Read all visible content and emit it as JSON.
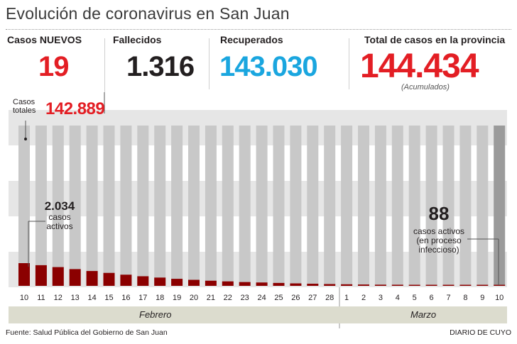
{
  "title": "Evolución de coronavirus en San Juan",
  "stats": {
    "new_label": "Casos NUEVOS",
    "new_value": "19",
    "deaths_label": "Fallecidos",
    "deaths_value": "1.316",
    "recovered_label": "Recuperados",
    "recovered_value": "143.030",
    "total_label": "Total de casos en la provincia",
    "total_value": "144.434",
    "total_note": "(Acumulados)"
  },
  "annotations": {
    "total_cases_label_1": "Casos",
    "total_cases_label_2": "totales",
    "total_cases_value": "142.889",
    "active_start_value": "2.034",
    "active_start_label_1": "casos",
    "active_start_label_2": "activos",
    "active_end_value": "88",
    "active_end_label_1": "casos activos",
    "active_end_label_2": "(en proceso",
    "active_end_label_3": "infeccioso)"
  },
  "months": {
    "feb": "Febrero",
    "mar": "Marzo"
  },
  "footer": {
    "source": "Fuente: Salud Pública del Gobierno de San Juan",
    "brand": "DIARIO DE CUYO"
  },
  "colors": {
    "red": "#e31e24",
    "blue": "#1aa6df",
    "dark": "#231f20",
    "bar_gray": "#c8c8c8",
    "last_bar_gray": "#9b9b9b",
    "active_red": "#8b0000",
    "bg_band": "#e6e6e6",
    "month_band": "#dcdcce"
  },
  "chart_data": {
    "type": "bar",
    "title": "",
    "xlabel": "",
    "ylabel": "",
    "categories": [
      "10",
      "11",
      "12",
      "13",
      "14",
      "15",
      "16",
      "17",
      "18",
      "19",
      "20",
      "21",
      "22",
      "23",
      "24",
      "25",
      "26",
      "27",
      "28",
      "1",
      "2",
      "3",
      "4",
      "5",
      "6",
      "7",
      "8",
      "9",
      "10"
    ],
    "series": [
      {
        "name": "casos activos",
        "values": [
          2034,
          1850,
          1680,
          1500,
          1330,
          1160,
          1000,
          860,
          740,
          630,
          540,
          460,
          400,
          340,
          300,
          260,
          220,
          190,
          160,
          140,
          120,
          105,
          100,
          95,
          92,
          90,
          90,
          89,
          88
        ]
      }
    ],
    "background_total": "casos totales",
    "month_groups": [
      {
        "label": "Febrero",
        "from": "10",
        "to": "28"
      },
      {
        "label": "Marzo",
        "from": "1",
        "to": "10"
      }
    ],
    "ylim": [
      0,
      2034
    ],
    "grid": false,
    "legend": "none"
  }
}
